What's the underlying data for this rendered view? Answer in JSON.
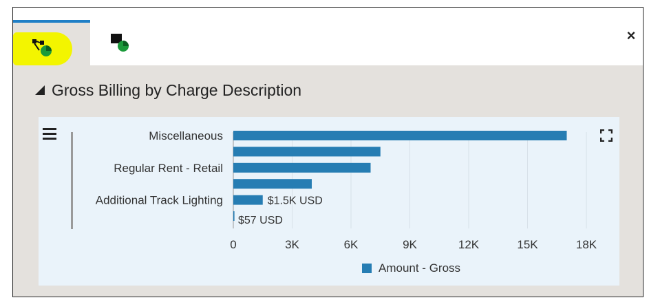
{
  "tabs": [
    {
      "icon": "tree-chart-icon",
      "active": true
    },
    {
      "icon": "table-chart-icon",
      "active": false
    }
  ],
  "close_label": "×",
  "section": {
    "title": "Gross Billing by Charge Description"
  },
  "colors": {
    "bar": "#267db3",
    "highlight": "#f3f500",
    "accent": "#1f7fc6"
  },
  "chart_data": {
    "type": "bar",
    "orientation": "horizontal",
    "categories": [
      "Miscellaneous",
      "",
      "Regular Rent - Retail",
      "",
      "Additional Track Lighting",
      ""
    ],
    "series": [
      {
        "name": "Amount - Gross",
        "values": [
          17000,
          7500,
          7000,
          4000,
          1500,
          57
        ]
      }
    ],
    "data_labels": [
      "",
      "",
      "",
      "",
      "$1.5K USD",
      "$57 USD"
    ],
    "xlim": [
      0,
      18000
    ],
    "ticks": [
      0,
      3000,
      6000,
      9000,
      12000,
      15000,
      18000
    ],
    "tick_labels": [
      "0",
      "3K",
      "6K",
      "9K",
      "12K",
      "15K",
      "18K"
    ],
    "grid": true,
    "legend_position": "bottom"
  }
}
